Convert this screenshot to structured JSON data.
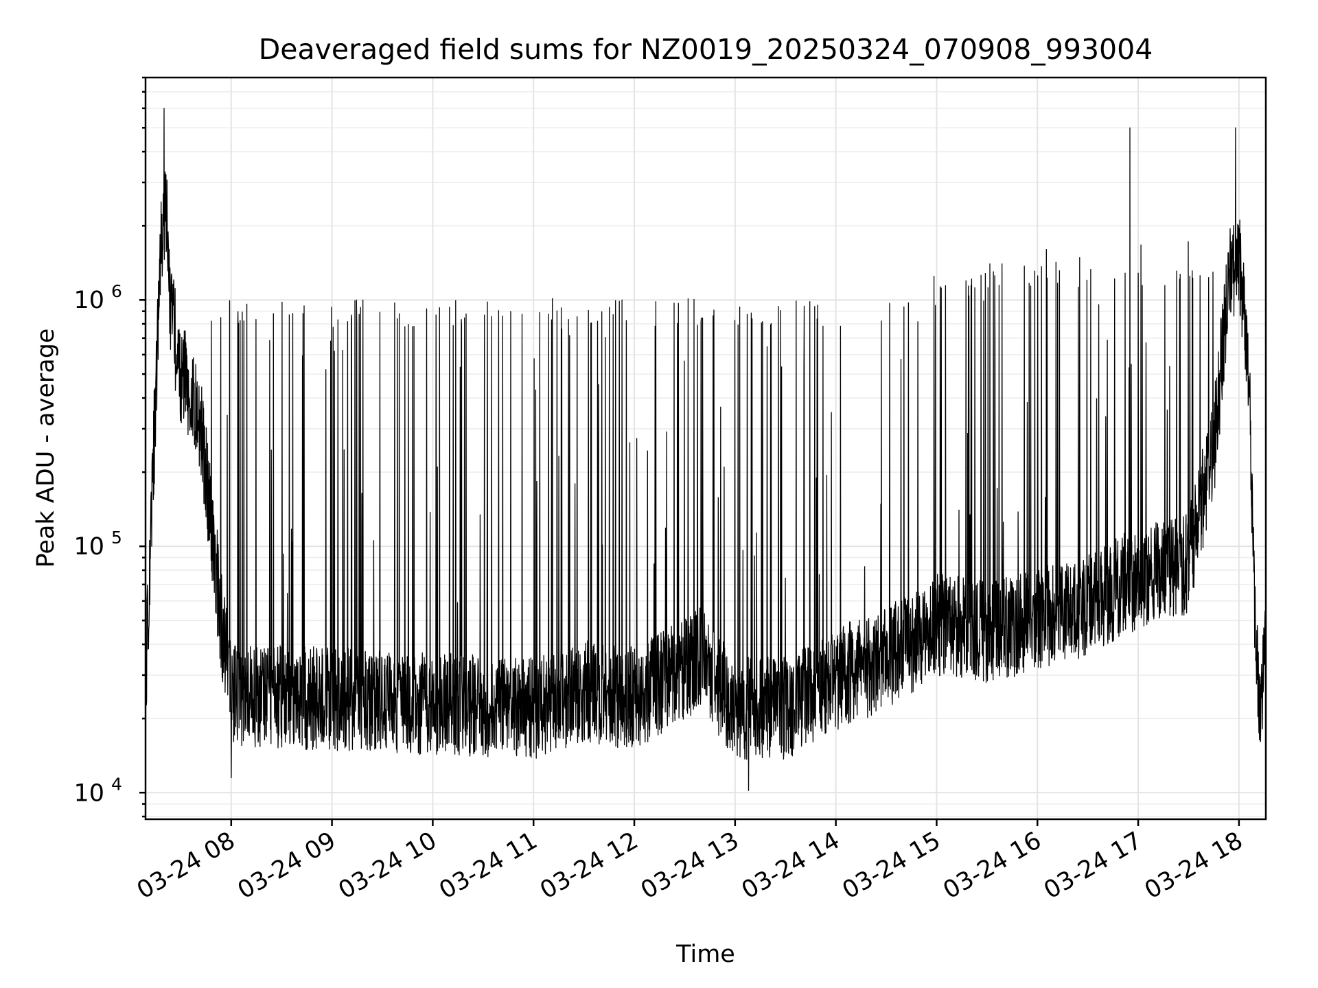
{
  "chart_data": {
    "type": "line",
    "title": "Deaveraged field sums for NZ0019_20250324_070908_993004",
    "xlabel": "Time",
    "ylabel": "Peak ADU - average",
    "y_scale": "log",
    "ylim": [
      7800,
      8000000
    ],
    "y_ticks": [
      10000,
      100000,
      1000000
    ],
    "y_tick_labels": [
      {
        "base": "10",
        "exp": "4"
      },
      {
        "base": "10",
        "exp": "5"
      },
      {
        "base": "10",
        "exp": "6"
      }
    ],
    "xlim": [
      "2025-03-24 07:09",
      "2025-03-24 18:16"
    ],
    "x_ticks": [
      "2025-03-24 08:00",
      "2025-03-24 09:00",
      "2025-03-24 10:00",
      "2025-03-24 11:00",
      "2025-03-24 12:00",
      "2025-03-24 13:00",
      "2025-03-24 14:00",
      "2025-03-24 15:00",
      "2025-03-24 16:00",
      "2025-03-24 17:00",
      "2025-03-24 18:00"
    ],
    "x_tick_labels": [
      "03-24 08",
      "03-24 09",
      "03-24 10",
      "03-24 11",
      "03-24 12",
      "03-24 13",
      "03-24 14",
      "03-24 15",
      "03-24 16",
      "03-24 17",
      "03-24 18"
    ],
    "grid": true,
    "series": [
      {
        "color": "#000000",
        "baseline": [
          [
            "2025-03-24 07:09",
            28000
          ],
          [
            "2025-03-24 07:12",
            100000
          ],
          [
            "2025-03-24 07:15",
            400000
          ],
          [
            "2025-03-24 07:18",
            1500000
          ],
          [
            "2025-03-24 07:21",
            2500000
          ],
          [
            "2025-03-24 07:24",
            900000
          ],
          [
            "2025-03-24 07:30",
            500000
          ],
          [
            "2025-03-24 07:36",
            420000
          ],
          [
            "2025-03-24 07:42",
            300000
          ],
          [
            "2025-03-24 07:48",
            130000
          ],
          [
            "2025-03-24 07:54",
            50000
          ],
          [
            "2025-03-24 08:00",
            25000
          ],
          [
            "2025-03-24 09:00",
            24000
          ],
          [
            "2025-03-24 10:00",
            23000
          ],
          [
            "2025-03-24 11:00",
            22000
          ],
          [
            "2025-03-24 11:30",
            26000
          ],
          [
            "2025-03-24 12:00",
            24000
          ],
          [
            "2025-03-24 12:40",
            35000
          ],
          [
            "2025-03-24 13:00",
            22000
          ],
          [
            "2025-03-24 13:30",
            22000
          ],
          [
            "2025-03-24 14:00",
            29000
          ],
          [
            "2025-03-24 14:30",
            35000
          ],
          [
            "2025-03-24 15:00",
            48000
          ],
          [
            "2025-03-24 15:30",
            45000
          ],
          [
            "2025-03-24 16:00",
            50000
          ],
          [
            "2025-03-24 16:30",
            58000
          ],
          [
            "2025-03-24 17:00",
            75000
          ],
          [
            "2025-03-24 17:30",
            85000
          ],
          [
            "2025-03-24 17:45",
            250000
          ],
          [
            "2025-03-24 17:54",
            1200000
          ],
          [
            "2025-03-24 18:00",
            1600000
          ],
          [
            "2025-03-24 18:06",
            500000
          ],
          [
            "2025-03-24 18:09",
            60000
          ],
          [
            "2025-03-24 18:12",
            22000
          ],
          [
            "2025-03-24 18:16",
            37000
          ]
        ],
        "peak_levels": [
          {
            "from": "2025-03-24 07:48",
            "to": "2025-03-24 14:24",
            "value": 950000
          },
          {
            "from": "2025-03-24 14:24",
            "to": "2025-03-24 14:54",
            "value": 1000000
          },
          {
            "from": "2025-03-24 14:54",
            "to": "2025-03-24 15:30",
            "value": 1200000
          },
          {
            "from": "2025-03-24 15:30",
            "to": "2025-03-24 17:48",
            "value": 1350000
          }
        ],
        "notable_peaks": [
          [
            "2025-03-24 07:20",
            6000000
          ],
          [
            "2025-03-24 16:55",
            5000000
          ],
          [
            "2025-03-24 17:58",
            5000000
          ]
        ],
        "notable_minima": [
          [
            "2025-03-24 08:00",
            11500
          ],
          [
            "2025-03-24 13:08",
            10200
          ],
          [
            "2025-03-24 18:13",
            19500
          ]
        ]
      }
    ]
  }
}
